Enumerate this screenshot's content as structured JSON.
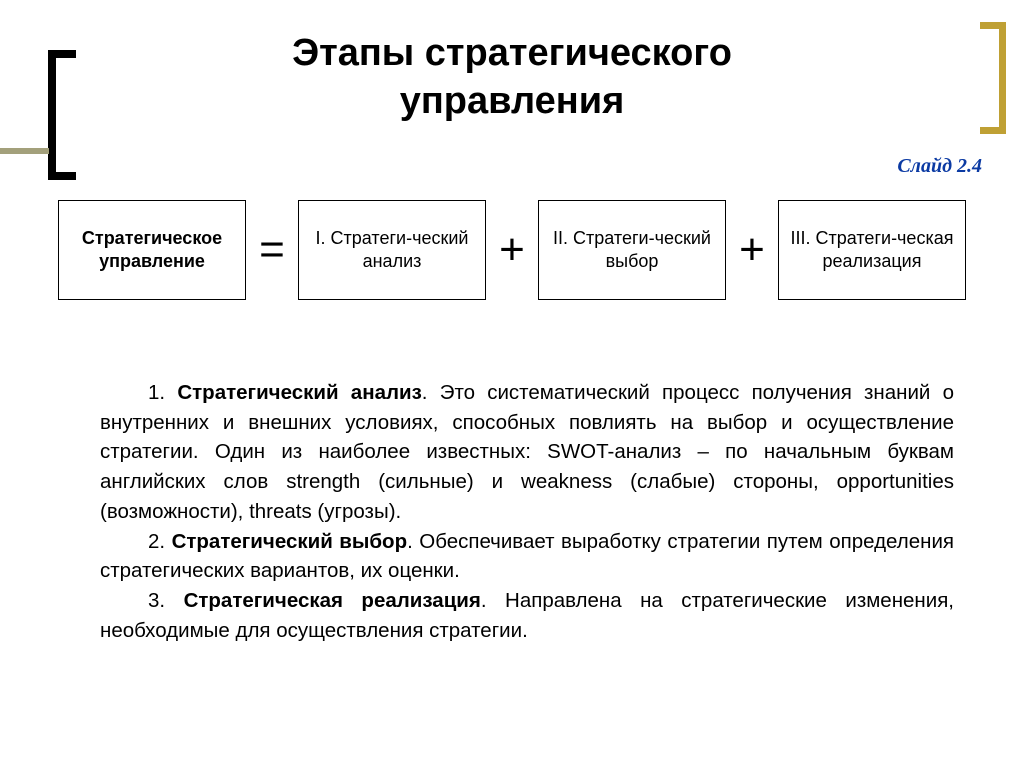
{
  "slide": {
    "title_line1": "Этапы стратегического",
    "title_line2": "управления",
    "label": "Слайд 2.4"
  },
  "colors": {
    "left_bracket": "#000000",
    "right_bracket": "#bfa034",
    "divider": "#a3a07b",
    "slide_label": "#0b3aa3",
    "box_border": "#000000",
    "text": "#000000",
    "background": "#ffffff"
  },
  "equation": {
    "lhs": "Стратегическое управление",
    "eq": "=",
    "terms": [
      "I. Стратеги-ческий анализ",
      "II. Стратеги-ческий выбор",
      "III. Стратеги-ческая реализация"
    ],
    "plus": "+"
  },
  "paragraphs": {
    "p1_num": "1. ",
    "p1_bold": "Стратегический анализ",
    "p1_rest": ". Это систематический процесс получения знаний о внутренних и внешних условиях, способных повлиять на выбор и осуществление стратегии. Один из наиболее известных: SWOT-анализ – по начальным буквам английских слов strength (сильные) и weakness (слабые) стороны, opportunities (возможности), threats (угрозы).",
    "p2_num": "2. ",
    "p2_bold": "Стратегический выбор",
    "p2_rest": ". Обеспечивает выработку стратегии путем определения стратегических вариантов, их оценки.",
    "p3_num": "3. ",
    "p3_bold": "Стратегическая реализация",
    "p3_rest": ". Направлена на стратегические изменения, необходимые для осуществления стратегии."
  }
}
